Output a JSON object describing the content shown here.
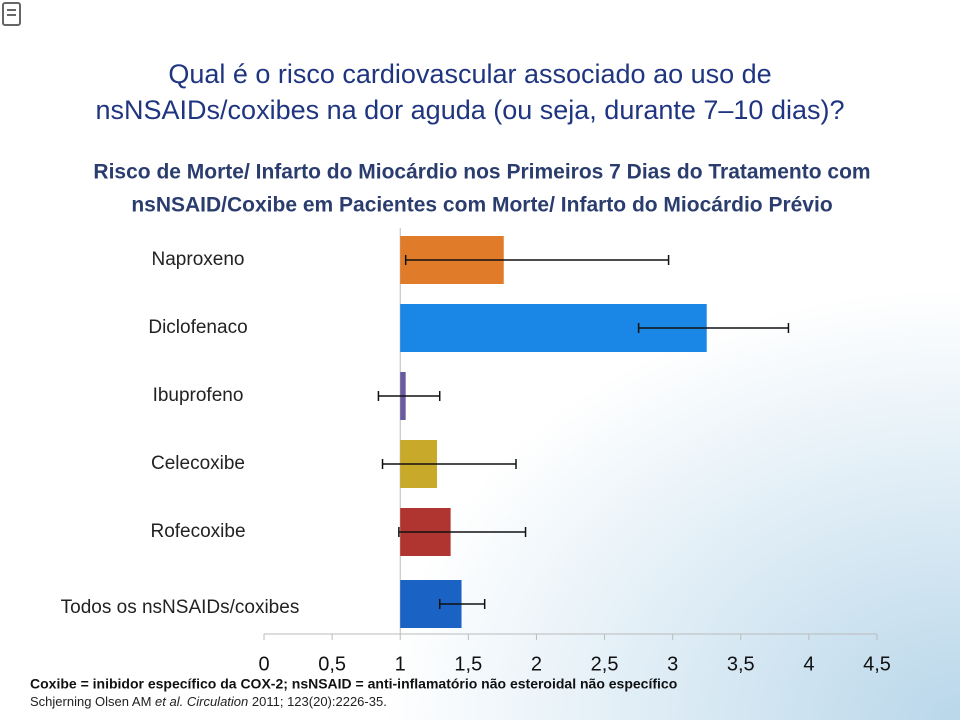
{
  "page_title": [
    "Qual é o risco cardiovascular associado ao uso de",
    "nsNSAIDs/coxibes na dor aguda (ou seja, durante 7–10 dias)?"
  ],
  "chart_data": {
    "type": "hbar_error",
    "title": [
      "Risco de Morte/ Infarto do Miocárdio nos Primeiros 7 Dias do Tratamento com",
      "nsNSAID/Coxibe em Pacientes com Morte/ Infarto do Miocárdio Prévio"
    ],
    "categories": [
      "Naproxeno",
      "Diclofenaco",
      "Ibuprofeno",
      "Celecoxibe",
      "Rofecoxibe",
      "Todos os nsNSAIDs/coxibes"
    ],
    "values": [
      1.76,
      3.25,
      1.04,
      1.27,
      1.37,
      1.45
    ],
    "ci": [
      [
        1.04,
        2.97
      ],
      [
        2.75,
        3.85
      ],
      [
        0.84,
        1.29
      ],
      [
        0.87,
        1.85
      ],
      [
        0.99,
        1.92
      ],
      [
        1.29,
        1.62
      ]
    ],
    "colors": [
      "#e07b2a",
      "#1a86e6",
      "#6a5a9e",
      "#c9a92a",
      "#b03530",
      "#1a62c4"
    ],
    "reference": 1,
    "xlim": [
      0,
      4.5
    ],
    "xticks": [
      0,
      {
        "value": 0.5,
        "label": "0,5"
      },
      1,
      {
        "value": 1.5,
        "label": "1,5"
      },
      2,
      {
        "value": 2.5,
        "label": "2,5"
      },
      3,
      {
        "value": 3.5,
        "label": "3,5"
      },
      4,
      {
        "value": 4.5,
        "label": "4,5"
      }
    ]
  },
  "footnote": "Coxibe = inibidor específico da COX-2; nsNSAID = anti-inflamatório não esteroidal não específico",
  "citation": [
    "Schjerning Olsen AM",
    "et al.",
    "Circulation",
    "2011; 123(20):2226-35."
  ]
}
